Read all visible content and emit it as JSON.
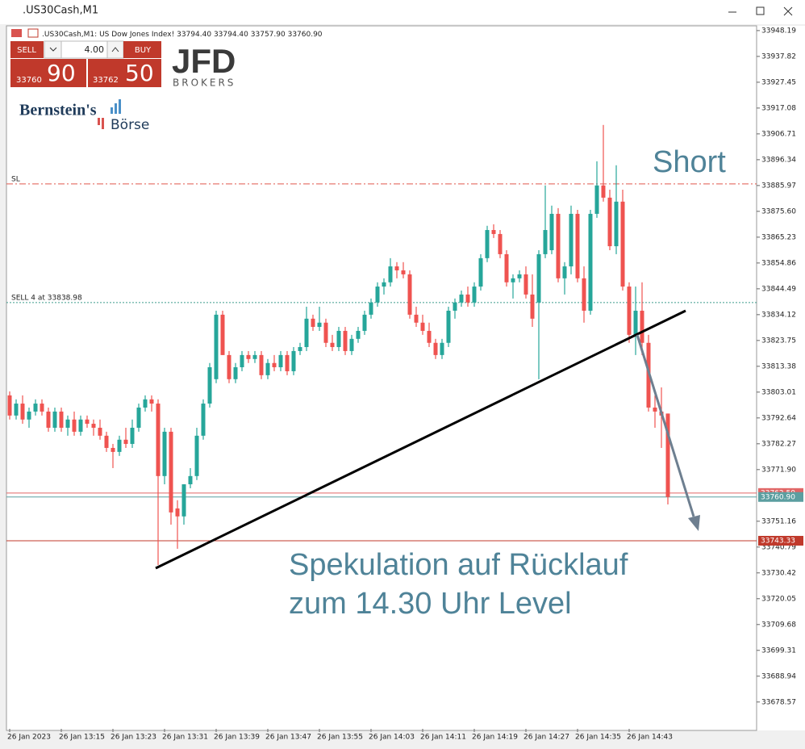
{
  "window": {
    "title": ".US30Cash,M1"
  },
  "header": {
    "symbol": ".US30Cash,M1:",
    "description": "US Dow Jones Index!",
    "ohlc": [
      "33794.40",
      "33794.40",
      "33757.90",
      "33760.90"
    ]
  },
  "trade_panel": {
    "sell": "SELL",
    "volume": "4.00",
    "buy": "BUY",
    "bid_main": "33760",
    "bid_big": "90",
    "ask_main": "33762",
    "ask_big": "50"
  },
  "logos": {
    "broker": "JFD",
    "broker_sub": "BROKERS",
    "brand": "Bernstein's",
    "brand_sub": "Börse"
  },
  "chart_data": {
    "type": "candlestick",
    "annotations": [
      "Short",
      "Spekulation auf Rücklauf",
      "zum 14.30 Uhr Level"
    ],
    "categories": [
      "26 Jan 2023",
      null,
      null,
      null,
      null,
      null,
      null,
      null,
      "26 Jan 13:15",
      null,
      null,
      null,
      null,
      null,
      null,
      null,
      "26 Jan 13:23",
      null,
      null,
      null,
      null,
      null,
      null,
      null,
      "26 Jan 13:31",
      null,
      null,
      null,
      null,
      null,
      null,
      null,
      "26 Jan 13:39",
      null,
      null,
      null,
      null,
      null,
      null,
      null,
      "26 Jan 13:47",
      null,
      null,
      null,
      null,
      null,
      null,
      null,
      "26 Jan 13:55",
      null,
      null,
      null,
      null,
      null,
      null,
      null,
      "26 Jan 14:03",
      null,
      null,
      null,
      null,
      null,
      null,
      null,
      "26 Jan 14:11",
      null,
      null,
      null,
      null,
      null,
      null,
      null,
      "26 Jan 14:19",
      null,
      null,
      null,
      null,
      null,
      null,
      null,
      "26 Jan 14:27",
      null,
      null,
      null,
      null,
      null,
      null,
      null,
      "26 Jan 14:35",
      null,
      null,
      null,
      null,
      null,
      null,
      null,
      "26 Jan 14:43",
      null,
      null,
      null,
      null,
      null,
      null
    ],
    "open": [
      33801.7,
      33793.6,
      33798.4,
      33792.0,
      33795.2,
      33798.4,
      33795.2,
      33788.7,
      33795.2,
      33788.7,
      33792.0,
      33787.1,
      33792.0,
      33790.3,
      33788.7,
      33785.5,
      33780.6,
      33779.0,
      33783.9,
      33782.2,
      33788.7,
      33796.8,
      33800.1,
      33798.4,
      33769.3,
      33787.1,
      33756.3,
      33753.1,
      33766.0,
      33769.3,
      33785.5,
      33798.4,
      33808.2,
      33834.1,
      33817.9,
      33808.2,
      33813.0,
      33817.9,
      33816.3,
      33817.9,
      33809.8,
      33814.7,
      33813.0,
      33817.9,
      33811.4,
      33819.5,
      33821.1,
      33832.5,
      33829.2,
      33830.9,
      33822.8,
      33821.1,
      33827.6,
      33819.5,
      33824.4,
      33827.6,
      33834.1,
      33839.0,
      33845.4,
      33847.1,
      33853.5,
      33851.9,
      33850.3,
      33834.1,
      33830.9,
      33827.6,
      33822.8,
      33817.9,
      33822.8,
      33835.7,
      33839.0,
      33842.2,
      33839.0,
      33845.4,
      33856.8,
      33868.1,
      33866.5,
      33858.4,
      33847.1,
      33848.7,
      33850.3,
      33842.2,
      33839.0,
      33858.4,
      33860.0,
      33874.6,
      33848.7,
      33853.5,
      33874.6,
      33848.7,
      33835.7,
      33874.6,
      33886.0,
      33881.1,
      33861.6,
      33879.5,
      33845.4,
      33826.0,
      33835.7,
      33822.8,
      33796.8,
      33795.2,
      33794.4
    ],
    "high": [
      33803.3,
      33800.1,
      33801.7,
      33796.8,
      33800.1,
      33800.1,
      33796.8,
      33796.8,
      33796.8,
      33793.6,
      33795.2,
      33793.6,
      33793.6,
      33792.0,
      33792.0,
      33787.1,
      33782.2,
      33785.5,
      33788.7,
      33792.0,
      33798.4,
      33801.7,
      33801.7,
      33800.1,
      33788.7,
      33788.7,
      33759.6,
      33766.0,
      33772.5,
      33788.7,
      33800.1,
      33814.7,
      33835.7,
      33835.7,
      33819.5,
      33814.7,
      33819.5,
      33819.5,
      33819.5,
      33819.5,
      33816.3,
      33817.9,
      33819.5,
      33819.5,
      33821.1,
      33822.8,
      33837.3,
      33834.1,
      33837.3,
      33832.5,
      33826.0,
      33829.2,
      33829.2,
      33826.0,
      33829.2,
      33835.7,
      33840.6,
      33847.1,
      33848.7,
      33856.8,
      33855.2,
      33855.2,
      33851.9,
      33837.3,
      33834.1,
      33830.9,
      33824.4,
      33824.4,
      33837.3,
      33840.6,
      33843.8,
      33845.4,
      33847.1,
      33858.4,
      33869.8,
      33870.4,
      33868.1,
      33860.0,
      33850.3,
      33851.9,
      33853.5,
      33850.3,
      33860.0,
      33886.0,
      33877.9,
      33876.9,
      33855.2,
      33877.9,
      33876.2,
      33853.5,
      33876.2,
      33895.7,
      33910.3,
      33884.3,
      33894.1,
      33884.3,
      33847.1,
      33845.4,
      33847.1,
      33826.0,
      33801.7,
      33804.9,
      33794.4
    ],
    "low": [
      33792.0,
      33792.0,
      33790.3,
      33788.7,
      33793.6,
      33793.6,
      33787.1,
      33787.1,
      33787.1,
      33785.5,
      33785.5,
      33785.5,
      33788.7,
      33785.5,
      33783.9,
      33779.0,
      33772.5,
      33777.4,
      33780.6,
      33780.6,
      33787.1,
      33795.2,
      33795.2,
      33733.6,
      33766.0,
      33749.8,
      33740.1,
      33749.8,
      33764.4,
      33767.7,
      33783.9,
      33796.8,
      33806.6,
      33817.9,
      33806.6,
      33806.6,
      33811.4,
      33814.7,
      33814.7,
      33808.2,
      33808.2,
      33811.4,
      33811.4,
      33809.8,
      33809.8,
      33817.9,
      33819.5,
      33827.6,
      33827.6,
      33821.1,
      33819.5,
      33819.5,
      33817.9,
      33817.9,
      33822.8,
      33826.0,
      33832.5,
      33837.3,
      33842.2,
      33845.4,
      33848.7,
      33848.7,
      33832.5,
      33829.2,
      33826.0,
      33821.1,
      33816.3,
      33816.3,
      33821.1,
      33832.5,
      33837.3,
      33837.3,
      33837.3,
      33843.8,
      33855.2,
      33864.9,
      33856.8,
      33845.4,
      33840.6,
      33847.1,
      33840.6,
      33829.2,
      33808.2,
      33856.8,
      33858.4,
      33847.1,
      33842.2,
      33850.3,
      33847.1,
      33830.9,
      33834.1,
      33873.0,
      33879.5,
      33860.0,
      33858.4,
      33843.8,
      33822.8,
      33817.9,
      33817.9,
      33795.2,
      33788.7,
      33780.6,
      33757.9
    ],
    "close": [
      33793.6,
      33798.4,
      33792.0,
      33795.2,
      33798.4,
      33795.2,
      33788.7,
      33795.2,
      33788.7,
      33792.0,
      33787.1,
      33792.0,
      33790.3,
      33788.7,
      33785.5,
      33780.6,
      33779.0,
      33783.9,
      33782.2,
      33788.7,
      33796.8,
      33800.1,
      33798.4,
      33769.3,
      33787.1,
      33754.7,
      33753.1,
      33766.0,
      33769.3,
      33785.5,
      33798.4,
      33813.0,
      33834.1,
      33817.9,
      33808.2,
      33813.0,
      33817.9,
      33816.3,
      33817.9,
      33809.8,
      33814.7,
      33813.0,
      33817.9,
      33811.4,
      33819.5,
      33821.1,
      33832.5,
      33829.2,
      33830.9,
      33822.8,
      33821.1,
      33827.6,
      33819.5,
      33824.4,
      33827.6,
      33834.1,
      33839.0,
      33845.4,
      33847.1,
      33853.5,
      33851.9,
      33850.3,
      33834.1,
      33830.9,
      33827.6,
      33822.8,
      33817.9,
      33822.8,
      33835.7,
      33839.0,
      33842.2,
      33839.0,
      33845.4,
      33856.8,
      33868.1,
      33866.5,
      33858.4,
      33847.1,
      33848.7,
      33850.3,
      33842.2,
      33832.5,
      33858.4,
      33868.1,
      33874.6,
      33848.7,
      33853.5,
      33874.6,
      33848.7,
      33835.7,
      33874.6,
      33886.0,
      33881.1,
      33861.6,
      33879.5,
      33845.4,
      33826.0,
      33835.7,
      33822.8,
      33796.8,
      33795.2,
      33793.6,
      33760.9
    ],
    "up_color": "#26a69a",
    "down_color": "#ef5350",
    "ylim": [
      33667.8,
      33950.1
    ],
    "yticks": [
      33948.19,
      33937.82,
      33927.45,
      33917.08,
      33906.71,
      33896.34,
      33885.97,
      {
        "value": 33875.6,
        "label": "33875.60"
      },
      33865.23,
      33854.86,
      33844.49,
      33834.12,
      33823.75,
      33813.38,
      33803.01,
      33792.64,
      33782.27,
      {
        "value": 33771.9,
        "label": "33771.90"
      },
      33751.16,
      33740.79,
      33730.42,
      33720.05,
      33709.68,
      33699.31,
      33688.94,
      33678.57
    ],
    "grid": false,
    "levels": [
      {
        "name": "SL",
        "value": 33886.6,
        "color": "#e0584c",
        "style": "dashdot"
      },
      {
        "name": "SELL 4 at 33838.98",
        "value": 33838.98,
        "color": "#3f9c8c",
        "style": "dotted"
      },
      {
        "value": 33743.33,
        "color": "#c0392b",
        "style": "solid",
        "tag": true
      },
      {
        "value": 33762.5,
        "label": "33762.50",
        "color": "#e06666",
        "style": "solid",
        "tag": true
      },
      {
        "value": 33760.9,
        "label": "33760.90",
        "color": "#5b9ea0",
        "style": "solid",
        "tag": true
      }
    ]
  }
}
